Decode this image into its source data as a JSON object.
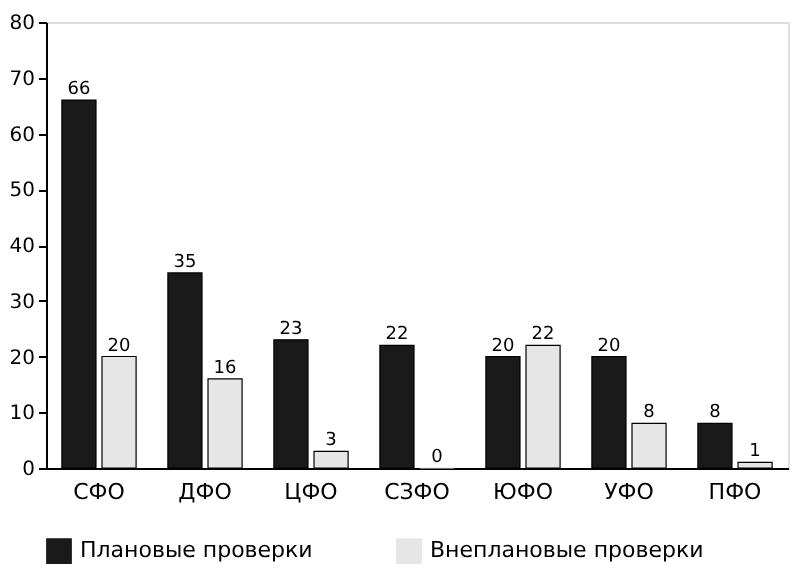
{
  "chart_data": {
    "type": "bar",
    "categories": [
      "СФО",
      "ДФО",
      "ЦФО",
      "СЗФО",
      "ЮФО",
      "УФО",
      "ПФО"
    ],
    "series": [
      {
        "name": "Плановые проверки",
        "color": "#1a1a1a",
        "values": [
          66,
          35,
          23,
          22,
          20,
          20,
          8
        ]
      },
      {
        "name": "Внеплановые проверки",
        "color": "#e6e6e6",
        "values": [
          20,
          16,
          3,
          0,
          22,
          8,
          1
        ]
      }
    ],
    "ylim": [
      0,
      80
    ],
    "yticks": [
      0,
      10,
      20,
      30,
      40,
      50,
      60,
      70,
      80
    ],
    "data_labels": true,
    "grid": false,
    "legend": "bottom"
  }
}
